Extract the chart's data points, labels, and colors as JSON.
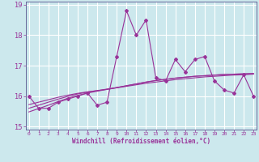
{
  "xlabel": "Windchill (Refroidissement éolien,°C)",
  "x": [
    0,
    1,
    2,
    3,
    4,
    5,
    6,
    7,
    8,
    9,
    10,
    11,
    12,
    13,
    14,
    15,
    16,
    17,
    18,
    19,
    20,
    21,
    22,
    23
  ],
  "y_main": [
    16.0,
    15.6,
    15.6,
    15.8,
    15.9,
    16.0,
    16.1,
    15.7,
    15.8,
    17.3,
    18.8,
    18.0,
    18.5,
    16.6,
    16.5,
    17.2,
    16.8,
    17.2,
    17.3,
    16.5,
    16.2,
    16.1,
    16.7,
    16.0
  ],
  "y_trend1": [
    15.72,
    15.8,
    15.88,
    15.96,
    16.03,
    16.09,
    16.14,
    16.18,
    16.22,
    16.27,
    16.32,
    16.37,
    16.42,
    16.46,
    16.5,
    16.54,
    16.57,
    16.6,
    16.63,
    16.65,
    16.67,
    16.69,
    16.7,
    16.72
  ],
  "y_trend2": [
    15.6,
    15.7,
    15.8,
    15.9,
    15.99,
    16.07,
    16.13,
    16.18,
    16.23,
    16.28,
    16.34,
    16.4,
    16.46,
    16.51,
    16.55,
    16.59,
    16.62,
    16.65,
    16.67,
    16.69,
    16.71,
    16.72,
    16.73,
    16.74
  ],
  "y_trend3": [
    15.48,
    15.59,
    15.7,
    15.82,
    15.93,
    16.02,
    16.1,
    16.16,
    16.22,
    16.28,
    16.34,
    16.4,
    16.46,
    16.51,
    16.55,
    16.59,
    16.62,
    16.65,
    16.67,
    16.69,
    16.71,
    16.72,
    16.73,
    16.74
  ],
  "line_color": "#993399",
  "bg_color": "#cce8ed",
  "grid_color": "#ffffff",
  "ylim": [
    14.9,
    19.1
  ],
  "yticks": [
    15,
    16,
    17,
    18,
    19
  ],
  "xlim": [
    -0.3,
    23.3
  ]
}
